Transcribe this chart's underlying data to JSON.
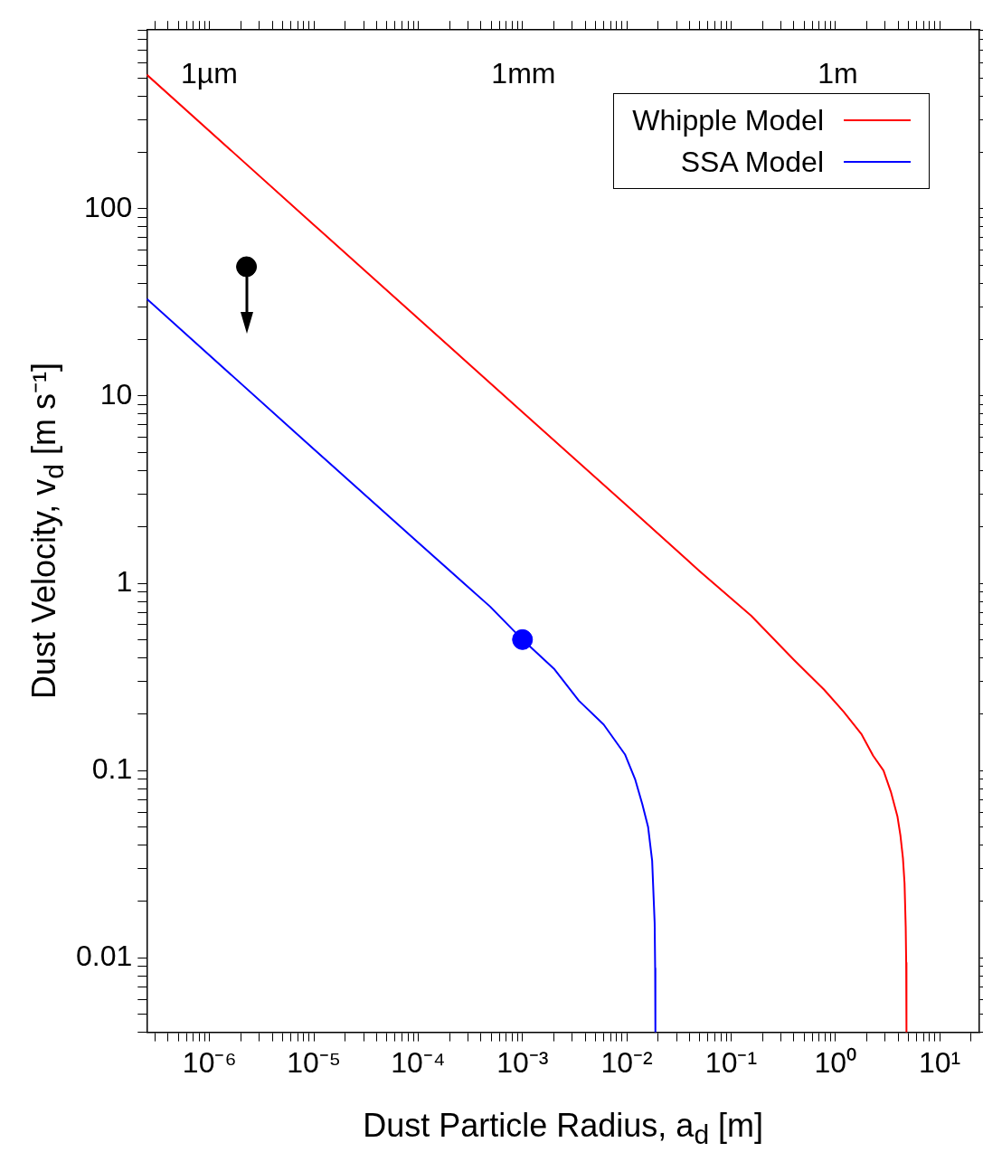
{
  "chart_data": {
    "type": "line",
    "xlabel": "Dust Particle Radius, a$_{d}$ [m]",
    "ylabel": "Dust Velocity, v$_{d}$ [m s⁻¹]",
    "log": "xy",
    "legend": "top right",
    "marker": "none",
    "line_style": "solid",
    "xlim": [
      2.5e-07,
      24
    ],
    "ylim": [
      0.004,
      900
    ],
    "xticks": [
      {
        "value": 3e-07,
        "label": null
      },
      {
        "value": 4e-07,
        "label": null
      },
      {
        "value": 5e-07,
        "label": null
      },
      {
        "value": 6e-07,
        "label": null
      },
      {
        "value": 7e-07,
        "label": null
      },
      {
        "value": 8e-07,
        "label": null
      },
      {
        "value": 9e-07,
        "label": null
      },
      {
        "value": 1e-06,
        "label": "10⁻⁶"
      },
      {
        "value": 2e-06,
        "label": null
      },
      {
        "value": 3e-06,
        "label": null
      },
      {
        "value": 4e-06,
        "label": null
      },
      {
        "value": 5e-06,
        "label": null
      },
      {
        "value": 6e-06,
        "label": null
      },
      {
        "value": 7e-06,
        "label": null
      },
      {
        "value": 8e-06,
        "label": null
      },
      {
        "value": 9e-06,
        "label": null
      },
      {
        "value": 1e-05,
        "label": "10⁻⁵"
      },
      {
        "value": 2e-05,
        "label": null
      },
      {
        "value": 3e-05,
        "label": null
      },
      {
        "value": 4e-05,
        "label": null
      },
      {
        "value": 5e-05,
        "label": null
      },
      {
        "value": 6e-05,
        "label": null
      },
      {
        "value": 7e-05,
        "label": null
      },
      {
        "value": 8e-05,
        "label": null
      },
      {
        "value": 9e-05,
        "label": null
      },
      {
        "value": 0.0001,
        "label": "10⁻⁴"
      },
      {
        "value": 0.0002,
        "label": null
      },
      {
        "value": 0.0003,
        "label": null
      },
      {
        "value": 0.0004,
        "label": null
      },
      {
        "value": 0.0005,
        "label": null
      },
      {
        "value": 0.0006,
        "label": null
      },
      {
        "value": 0.0007,
        "label": null
      },
      {
        "value": 0.0008,
        "label": null
      },
      {
        "value": 0.0009,
        "label": null
      },
      {
        "value": 0.001,
        "label": "10⁻³"
      },
      {
        "value": 0.002,
        "label": null
      },
      {
        "value": 0.003,
        "label": null
      },
      {
        "value": 0.004,
        "label": null
      },
      {
        "value": 0.005,
        "label": null
      },
      {
        "value": 0.006,
        "label": null
      },
      {
        "value": 0.007,
        "label": null
      },
      {
        "value": 0.008,
        "label": null
      },
      {
        "value": 0.009,
        "label": null
      },
      {
        "value": 0.01,
        "label": "10⁻²"
      },
      {
        "value": 0.02,
        "label": null
      },
      {
        "value": 0.03,
        "label": null
      },
      {
        "value": 0.04,
        "label": null
      },
      {
        "value": 0.05,
        "label": null
      },
      {
        "value": 0.06,
        "label": null
      },
      {
        "value": 0.07,
        "label": null
      },
      {
        "value": 0.08,
        "label": null
      },
      {
        "value": 0.09,
        "label": null
      },
      {
        "value": 0.1,
        "label": "10⁻¹"
      },
      {
        "value": 0.2,
        "label": null
      },
      {
        "value": 0.3,
        "label": null
      },
      {
        "value": 0.4,
        "label": null
      },
      {
        "value": 0.5,
        "label": null
      },
      {
        "value": 0.6,
        "label": null
      },
      {
        "value": 0.7,
        "label": null
      },
      {
        "value": 0.8,
        "label": null
      },
      {
        "value": 0.9,
        "label": null
      },
      {
        "value": 1,
        "label": "10⁰"
      },
      {
        "value": 2,
        "label": null
      },
      {
        "value": 3,
        "label": null
      },
      {
        "value": 4,
        "label": null
      },
      {
        "value": 5,
        "label": null
      },
      {
        "value": 6,
        "label": null
      },
      {
        "value": 7,
        "label": null
      },
      {
        "value": 8,
        "label": null
      },
      {
        "value": 9,
        "label": null
      },
      {
        "value": 10,
        "label": "10¹"
      },
      {
        "value": 20,
        "label": null
      }
    ],
    "annotations": [
      "1µm",
      "1mm",
      "1m"
    ],
    "yticks": [
      {
        "value": 0.004,
        "label": null
      },
      {
        "value": 0.005,
        "label": null
      },
      {
        "value": 0.006,
        "label": null
      },
      {
        "value": 0.007,
        "label": null
      },
      {
        "value": 0.008,
        "label": null
      },
      {
        "value": 0.009,
        "label": null
      },
      0.01,
      {
        "value": 0.02,
        "label": null
      },
      {
        "value": 0.03,
        "label": null
      },
      {
        "value": 0.04,
        "label": null
      },
      {
        "value": 0.05,
        "label": null
      },
      {
        "value": 0.06,
        "label": null
      },
      {
        "value": 0.07,
        "label": null
      },
      {
        "value": 0.08,
        "label": null
      },
      {
        "value": 0.09,
        "label": null
      },
      0.1,
      {
        "value": 0.2,
        "label": null
      },
      {
        "value": 0.3,
        "label": null
      },
      {
        "value": 0.4,
        "label": null
      },
      {
        "value": 0.5,
        "label": null
      },
      {
        "value": 0.6,
        "label": null
      },
      {
        "value": 0.7,
        "label": null
      },
      {
        "value": 0.8,
        "label": null
      },
      {
        "value": 0.9,
        "label": null
      },
      1,
      {
        "value": 2,
        "label": null
      },
      {
        "value": 3,
        "label": null
      },
      {
        "value": 4,
        "label": null
      },
      {
        "value": 5,
        "label": null
      },
      {
        "value": 6,
        "label": null
      },
      {
        "value": 7,
        "label": null
      },
      {
        "value": 8,
        "label": null
      },
      {
        "value": 9,
        "label": null
      },
      10,
      {
        "value": 20,
        "label": null
      },
      {
        "value": 30,
        "label": null
      },
      {
        "value": 40,
        "label": null
      },
      {
        "value": 50,
        "label": null
      },
      {
        "value": 60,
        "label": null
      },
      {
        "value": 70,
        "label": null
      },
      {
        "value": 80,
        "label": null
      },
      {
        "value": 90,
        "label": null
      },
      100,
      {
        "value": 200,
        "label": null
      },
      {
        "value": 300,
        "label": null
      },
      {
        "value": 400,
        "label": null
      },
      {
        "value": 500,
        "label": null
      },
      {
        "value": 600,
        "label": null
      },
      {
        "value": 700,
        "label": null
      },
      {
        "value": 800,
        "label": null
      },
      {
        "value": 900,
        "label": null
      }
    ],
    "series": [
      {
        "name": "Whipple Model",
        "color": "#ff0000",
        "x": [
          2.5e-07,
          1e-05,
          0.001,
          0.01,
          0.05,
          0.156,
          0.4,
          0.78,
          1.2,
          1.77,
          2.3,
          2.89,
          3.4,
          3.93,
          4.2,
          4.44,
          4.6,
          4.72,
          4.77,
          4.8
        ],
        "values": [
          520,
          82,
          8.2,
          2.6,
          1.16,
          0.67,
          0.39,
          0.27,
          0.206,
          0.157,
          0.12,
          0.1,
          0.077,
          0.057,
          0.045,
          0.034,
          0.025,
          0.0146,
          0.0094,
          0.004
        ]
      },
      {
        "name": "SSA Model",
        "color": "#0000ff",
        "x": [
          2.5e-07,
          1e-05,
          0.0001,
          0.00049,
          0.001,
          0.002,
          0.00347,
          0.006,
          0.0096,
          0.012,
          0.0141,
          0.016,
          0.0175,
          0.0185,
          0.0187,
          0.0188
        ],
        "values": [
          33,
          5.2,
          1.65,
          0.75,
          0.5,
          0.35,
          0.236,
          0.176,
          0.122,
          0.09,
          0.066,
          0.05,
          0.033,
          0.0153,
          0.0088,
          0.004
        ]
      },
      {
        "type": "scatter",
        "color": "#0000ff",
        "marker": "circle",
        "x": [
          0.001
        ],
        "values": [
          0.5
        ]
      },
      {
        "type": "scatter",
        "color": "#000000",
        "marker": "circle",
        "x": [
          2.26e-06
        ],
        "values": [
          49
        ]
      }
    ]
  }
}
